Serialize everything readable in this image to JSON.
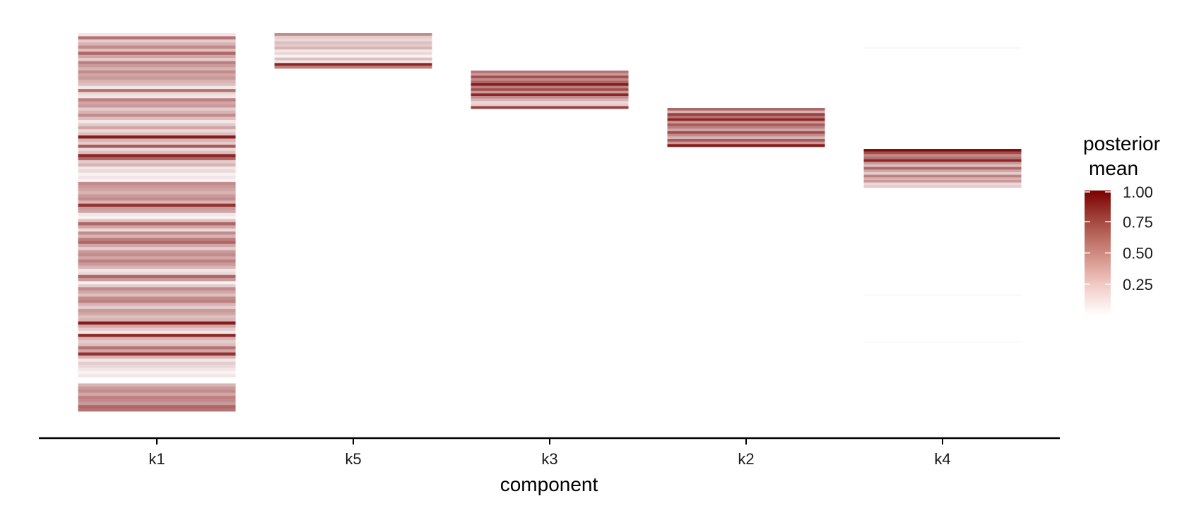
{
  "chart_data": {
    "type": "heatmap",
    "xlabel": "component",
    "ylabel": "",
    "categories": [
      "k1",
      "k5",
      "k3",
      "k2",
      "k4"
    ],
    "color_low": "#ffffff",
    "color_high": "#7a0000",
    "legend": {
      "title_line1": "posterior",
      "title_line2": "mean",
      "ticks": [
        1.0,
        0.75,
        0.5,
        0.25
      ],
      "tick_labels": [
        "1.00",
        "0.75",
        "0.50",
        "0.25"
      ],
      "range": [
        0.0,
        1.0
      ],
      "position": "right"
    },
    "columns": [
      {
        "name": "k1",
        "values": [
          0.1,
          0.55,
          0.2,
          0.3,
          0.45,
          0.25,
          0.6,
          0.35,
          0.2,
          0.5,
          0.4,
          0.3,
          0.45,
          0.35,
          0.4,
          0.3,
          0.25,
          0.1,
          0.55,
          0.15,
          0.1,
          0.5,
          0.35,
          0.4,
          0.2,
          0.3,
          0.45,
          0.25,
          0.1,
          0.2,
          0.35,
          0.15,
          0.25,
          0.9,
          0.3,
          0.2,
          0.65,
          0.15,
          0.25,
          0.85,
          0.6,
          0.2,
          0.3,
          0.1,
          0.15,
          0.05,
          0.1,
          0.05,
          0.45,
          0.4,
          0.35,
          0.3,
          0.4,
          0.45,
          0.3,
          0.8,
          0.4,
          0.35,
          0.1,
          0.05,
          0.25,
          0.6,
          0.35,
          0.15,
          0.45,
          0.3,
          0.5,
          0.6,
          0.35,
          0.2,
          0.4,
          0.45,
          0.35,
          0.5,
          0.4,
          0.3,
          0.1,
          0.15,
          0.6,
          0.4,
          0.05,
          0.2,
          0.45,
          0.35,
          0.25,
          0.45,
          0.5,
          0.3,
          0.2,
          0.4,
          0.35,
          0.25,
          0.3,
          0.9,
          0.35,
          0.2,
          0.1,
          0.85,
          0.3,
          0.2,
          0.25,
          0.55,
          0.35,
          0.8,
          0.3,
          0.1,
          0.2,
          0.15,
          0.1,
          0.05,
          0.1,
          0.0,
          0.0,
          0.3,
          0.4,
          0.45,
          0.35,
          0.5,
          0.45,
          0.4,
          0.6,
          0.55
        ]
      },
      {
        "name": "k5",
        "values": [
          0.45,
          0.2,
          0.15,
          0.25,
          0.2,
          0.3,
          0.1,
          0.15,
          0.05,
          0.25,
          0.1,
          0.85,
          0.5
        ]
      },
      {
        "name": "k3",
        "values": [
          0.55,
          0.4,
          0.7,
          0.45,
          0.6,
          0.9,
          0.5,
          0.7,
          0.4,
          0.85,
          0.45,
          0.3,
          0.15,
          0.2,
          0.75
        ]
      },
      {
        "name": "k2",
        "values": [
          0.6,
          0.3,
          0.75,
          0.55,
          0.85,
          0.4,
          0.65,
          0.5,
          0.35,
          0.7,
          0.45,
          0.3,
          0.65,
          0.4,
          0.9
        ]
      },
      {
        "name": "k4",
        "values": [
          0.95,
          0.7,
          0.45,
          0.55,
          0.85,
          0.4,
          0.25,
          0.6,
          0.35,
          0.2,
          0.5,
          0.3,
          0.4,
          0.15,
          0.2
        ]
      }
    ],
    "faint_marks": [
      {
        "column": "k4",
        "value": 0.03,
        "level": "upper"
      },
      {
        "column": "k4",
        "value": 0.03,
        "level": "middle"
      },
      {
        "column": "k4",
        "value": 0.02,
        "level": "lower"
      }
    ]
  }
}
